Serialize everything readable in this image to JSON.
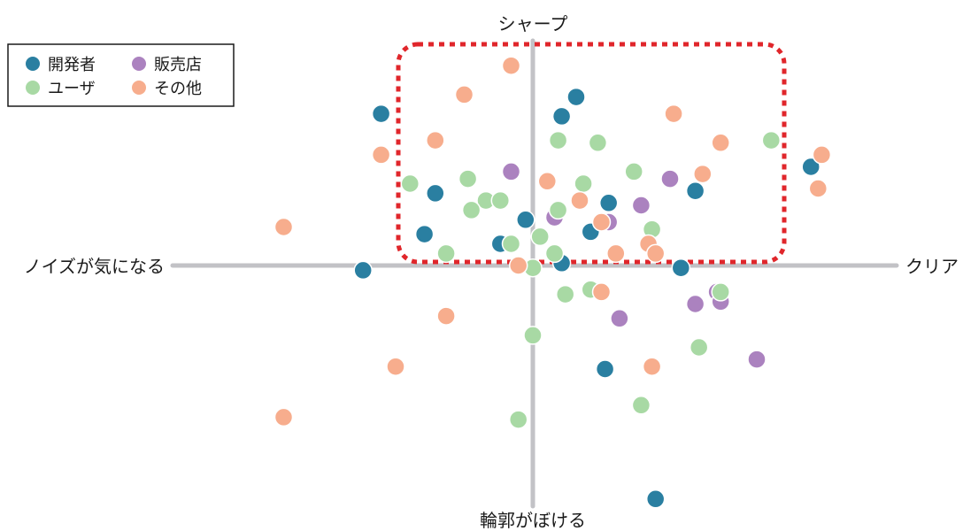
{
  "chart_data": {
    "type": "scatter",
    "axes": {
      "top_label": "シャープ",
      "bottom_label": "輪郭がぼける",
      "left_label": "ノイズが気になる",
      "right_label": "クリア"
    },
    "xlim": [
      -1,
      1
    ],
    "ylim": [
      -1,
      1
    ],
    "grid": false,
    "legend_position": "top-left",
    "highlight_region": {
      "x": [
        -0.38,
        0.7
      ],
      "y": [
        0.02,
        0.95
      ],
      "color": "#e0262b",
      "style": "dotted rounded rectangle"
    },
    "series": [
      {
        "name": "開発者",
        "color": "#2a7fa1",
        "points": [
          [
            0.12,
            0.7
          ],
          [
            0.08,
            0.62
          ],
          [
            -0.42,
            0.63
          ],
          [
            -0.27,
            0.3
          ],
          [
            -0.3,
            0.13
          ],
          [
            -0.09,
            0.09
          ],
          [
            -0.02,
            0.19
          ],
          [
            0.08,
            0.01
          ],
          [
            0.21,
            0.26
          ],
          [
            0.16,
            0.14
          ],
          [
            0.45,
            0.31
          ],
          [
            0.41,
            -0.01
          ],
          [
            0.77,
            0.41
          ],
          [
            -0.47,
            -0.02
          ],
          [
            0.2,
            -0.43
          ],
          [
            0.34,
            -0.97
          ]
        ]
      },
      {
        "name": "販売店",
        "color": "#ab82bf",
        "points": [
          [
            -0.06,
            0.39
          ],
          [
            0.06,
            0.2
          ],
          [
            0.21,
            0.18
          ],
          [
            0.3,
            0.25
          ],
          [
            0.38,
            0.36
          ],
          [
            0.51,
            -0.11
          ],
          [
            0.52,
            -0.15
          ],
          [
            0.45,
            -0.16
          ],
          [
            0.24,
            -0.22
          ],
          [
            0.62,
            -0.39
          ]
        ]
      },
      {
        "name": "ユーザ",
        "color": "#a8d9a4",
        "points": [
          [
            -0.34,
            0.34
          ],
          [
            -0.18,
            0.36
          ],
          [
            -0.13,
            0.27
          ],
          [
            -0.09,
            0.27
          ],
          [
            -0.17,
            0.23
          ],
          [
            0.07,
            0.52
          ],
          [
            0.18,
            0.51
          ],
          [
            0.66,
            0.52
          ],
          [
            0.28,
            0.39
          ],
          [
            0.14,
            0.34
          ],
          [
            0.07,
            0.23
          ],
          [
            0.33,
            0.15
          ],
          [
            0.02,
            0.12
          ],
          [
            -0.06,
            0.09
          ],
          [
            0.06,
            0.05
          ],
          [
            -0.24,
            0.05
          ],
          [
            0.0,
            -0.01
          ],
          [
            0.16,
            -0.1
          ],
          [
            0.09,
            -0.12
          ],
          [
            0.52,
            -0.11
          ],
          [
            0.46,
            -0.34
          ],
          [
            0.3,
            -0.58
          ],
          [
            0.0,
            -0.29
          ],
          [
            -0.04,
            -0.64
          ]
        ]
      },
      {
        "name": "その他",
        "color": "#f7ad8d",
        "points": [
          [
            -0.06,
            0.83
          ],
          [
            -0.19,
            0.71
          ],
          [
            0.39,
            0.63
          ],
          [
            -0.27,
            0.52
          ],
          [
            -0.42,
            0.46
          ],
          [
            0.52,
            0.51
          ],
          [
            0.8,
            0.46
          ],
          [
            0.47,
            0.38
          ],
          [
            0.04,
            0.35
          ],
          [
            0.13,
            0.27
          ],
          [
            0.19,
            0.18
          ],
          [
            0.32,
            0.09
          ],
          [
            0.34,
            0.05
          ],
          [
            0.23,
            0.05
          ],
          [
            -0.04,
            0.0
          ],
          [
            0.19,
            -0.11
          ],
          [
            -0.24,
            -0.21
          ],
          [
            -0.38,
            -0.42
          ],
          [
            0.33,
            -0.42
          ],
          [
            -0.69,
            0.16
          ],
          [
            -0.69,
            -0.63
          ],
          [
            0.79,
            0.32
          ]
        ]
      }
    ]
  },
  "legend": {
    "items": [
      {
        "label": "開発者",
        "color": "#2a7fa1"
      },
      {
        "label": "販売店",
        "color": "#ab82bf"
      },
      {
        "label": "ユーザ",
        "color": "#a8d9a4"
      },
      {
        "label": "その他",
        "color": "#f7ad8d"
      }
    ]
  }
}
